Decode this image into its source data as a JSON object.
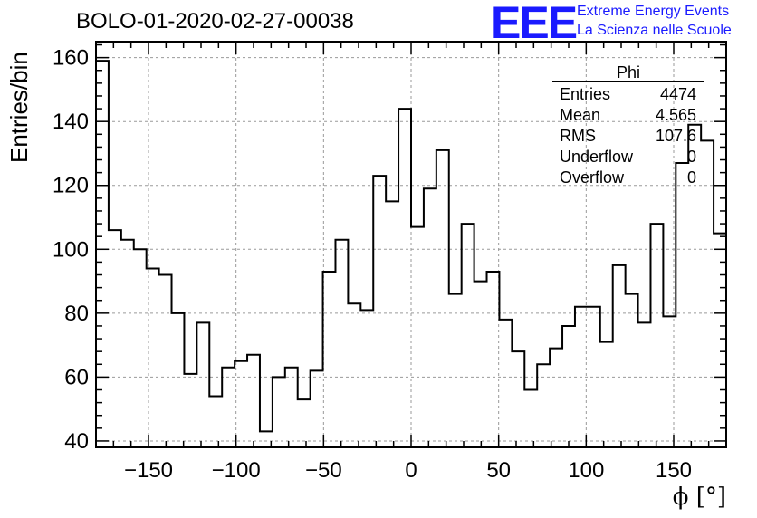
{
  "header": {
    "title": "BOLO-01-2020-02-27-00038",
    "logo_text": "EEE",
    "logo_line1": "Extreme Energy Events",
    "logo_line2": "La Scienza nelle Scuole",
    "brand_color": "#1a1aff"
  },
  "stats": {
    "name": "Phi",
    "rows": [
      {
        "label": "Entries",
        "value": "4474"
      },
      {
        "label": "Mean",
        "value": "4.565"
      },
      {
        "label": "RMS",
        "value": "107.6"
      },
      {
        "label": "Underflow",
        "value": "0"
      },
      {
        "label": "Overflow",
        "value": "0"
      }
    ]
  },
  "chart_data": {
    "type": "histogram",
    "xlabel": "ϕ [°]",
    "ylabel": "Entries/bin",
    "xlim": [
      -180,
      180
    ],
    "ylim": [
      38,
      165
    ],
    "bin_width": 7.2,
    "x_ticks": [
      -150,
      -100,
      -50,
      0,
      50,
      100,
      150
    ],
    "y_ticks": [
      40,
      60,
      80,
      100,
      120,
      140,
      160
    ],
    "grid": true,
    "values": [
      159,
      106,
      103,
      100,
      94,
      92,
      80,
      61,
      77,
      54,
      63,
      65,
      67,
      43,
      60,
      63,
      53,
      62,
      93,
      103,
      83,
      81,
      123,
      115,
      144,
      107,
      119,
      131,
      86,
      108,
      90,
      93,
      78,
      68,
      56,
      64,
      69,
      76,
      82,
      82,
      71,
      95,
      86,
      77,
      108,
      79,
      127,
      139,
      134,
      105
    ]
  }
}
